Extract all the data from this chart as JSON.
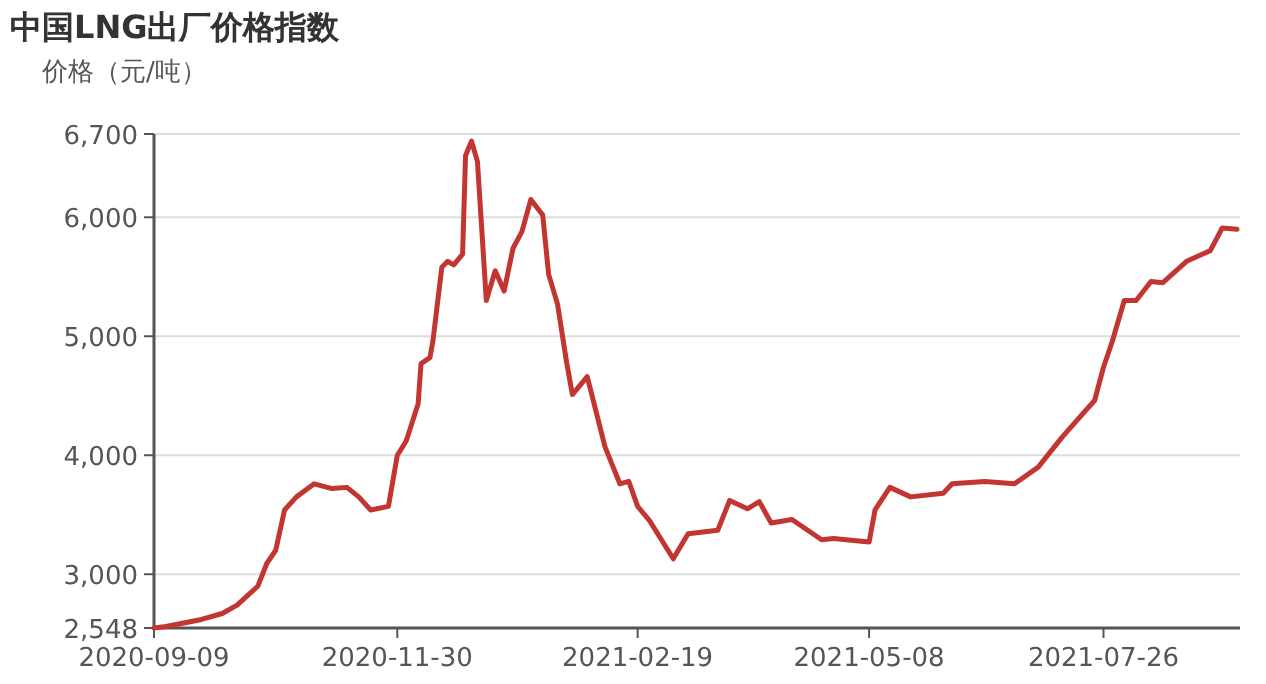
{
  "chart_data": {
    "type": "line",
    "title": "中国LNG出厂价格指数",
    "ylabel": "价格（元/吨）",
    "x": [
      "2020-09-09",
      "2020-09-13",
      "2020-09-25",
      "2020-10-02",
      "2020-10-07",
      "2020-10-14",
      "2020-10-17",
      "2020-10-20",
      "2020-10-23",
      "2020-10-27",
      "2020-11-02",
      "2020-11-08",
      "2020-11-13",
      "2020-11-17",
      "2020-11-21",
      "2020-11-27",
      "2020-11-30",
      "2020-12-03",
      "2020-12-07",
      "2020-12-08",
      "2020-12-11",
      "2020-12-12",
      "2020-12-15",
      "2020-12-17",
      "2020-12-19",
      "2020-12-22",
      "2020-12-23",
      "2020-12-25",
      "2020-12-27",
      "2020-12-30",
      "2021-01-02",
      "2021-01-05",
      "2021-01-08",
      "2021-01-11",
      "2021-01-14",
      "2021-01-18",
      "2021-01-20",
      "2021-01-23",
      "2021-01-26",
      "2021-01-28",
      "2021-02-02",
      "2021-02-08",
      "2021-02-13",
      "2021-02-16",
      "2021-02-19",
      "2021-02-23",
      "2021-03-03",
      "2021-03-08",
      "2021-03-18",
      "2021-03-22",
      "2021-03-28",
      "2021-04-01",
      "2021-04-05",
      "2021-04-12",
      "2021-04-22",
      "2021-04-26",
      "2021-05-08",
      "2021-05-10",
      "2021-05-15",
      "2021-05-22",
      "2021-06-02",
      "2021-06-05",
      "2021-06-16",
      "2021-06-26",
      "2021-07-04",
      "2021-07-12",
      "2021-07-18",
      "2021-07-23",
      "2021-07-26",
      "2021-07-29",
      "2021-08-02",
      "2021-08-06",
      "2021-08-11",
      "2021-08-15",
      "2021-08-23",
      "2021-08-31",
      "2021-09-04",
      "2021-09-09"
    ],
    "series": [
      {
        "color": "#c23531",
        "values": [
          2548,
          2560,
          2620,
          2670,
          2740,
          2900,
          3090,
          3200,
          3540,
          3650,
          3760,
          3720,
          3730,
          3650,
          3540,
          3570,
          4000,
          4120,
          4430,
          4770,
          4820,
          4960,
          5580,
          5630,
          5600,
          5690,
          6520,
          6640,
          6470,
          5300,
          5550,
          5380,
          5740,
          5880,
          6150,
          6020,
          5520,
          5270,
          4790,
          4510,
          4660,
          4070,
          3760,
          3780,
          3570,
          3450,
          3130,
          3340,
          3370,
          3620,
          3550,
          3610,
          3430,
          3460,
          3290,
          3300,
          3270,
          3540,
          3730,
          3650,
          3680,
          3760,
          3780,
          3760,
          3900,
          4150,
          4320,
          4460,
          4740,
          4960,
          5300,
          5300,
          5460,
          5450,
          5630,
          5720,
          5910,
          5900
        ]
      }
    ],
    "xlim": [
      "2020-09-09",
      "2021-09-10"
    ],
    "xticks": [
      "2020-09-09",
      "2020-11-30",
      "2021-02-19",
      "2021-05-08",
      "2021-07-26"
    ],
    "ylim": [
      2548,
      6700
    ],
    "yticks": [
      {
        "value": 2548,
        "label": "2,548"
      },
      {
        "value": 3000,
        "label": "3,000"
      },
      {
        "value": 4000,
        "label": "4,000"
      },
      {
        "value": 5000,
        "label": "5,000"
      },
      {
        "value": 6000,
        "label": "6,000"
      },
      {
        "value": 6700,
        "label": "6,700"
      }
    ],
    "grid": "y",
    "line_style": "solid"
  }
}
